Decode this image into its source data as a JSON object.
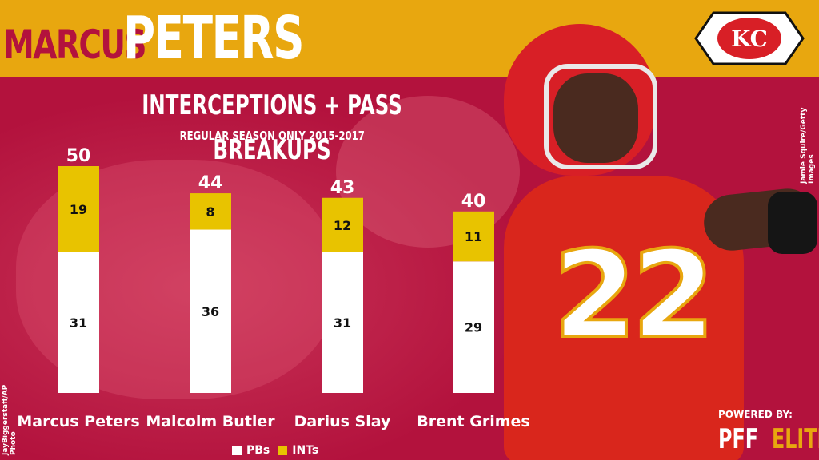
{
  "header": {
    "first_name": "MARCUS",
    "last_name": "PETERS"
  },
  "colors": {
    "background": "#b3123d",
    "header_band": "#e8a70f",
    "pbs": "#ffffff",
    "ints": "#e8c300"
  },
  "credits": {
    "photo_right": "Jamie Squire/Getty Images",
    "photo_left": "JayBiggerstaff/AP Photo"
  },
  "branding": {
    "powered_by": "POWERED BY:",
    "pff": "PFF",
    "elite": "ELITE",
    "logo_text": "KC"
  },
  "chart_data": {
    "type": "bar",
    "stacked": true,
    "title": "INTERCEPTIONS + PASS BREAKUPS",
    "subtitle": "REGULAR SEASON ONLY 2015-2017",
    "categories": [
      "Marcus Peters",
      "Malcolm Butler",
      "Darius Slay",
      "Brent Grimes"
    ],
    "series": [
      {
        "name": "PBs",
        "values": [
          31,
          36,
          31,
          29
        ],
        "color": "#ffffff"
      },
      {
        "name": "INTs",
        "values": [
          19,
          8,
          12,
          11
        ],
        "color": "#e8c300"
      }
    ],
    "totals": [
      50,
      44,
      43,
      40
    ],
    "ylim": [
      0,
      50
    ],
    "grid": false,
    "legend_position": "bottom"
  }
}
